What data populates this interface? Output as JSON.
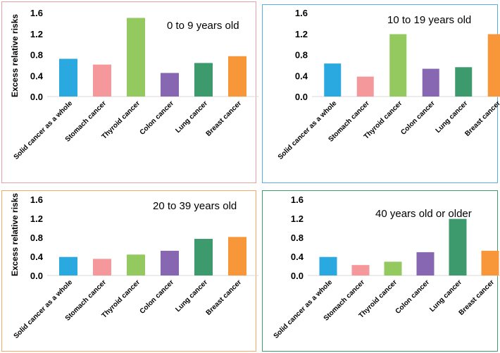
{
  "chart_data": [
    {
      "type": "bar",
      "title": "0 to 9 years old",
      "ylabel": "Excess relative risks",
      "ylim": [
        0,
        1.6
      ],
      "yticks": [
        "0.0",
        "0.4",
        "0.8",
        "1.2",
        "1.6"
      ],
      "categories": [
        "Solid cancer as a whole",
        "Stomach cancer",
        "Thyroid cancer",
        "Colon cancer",
        "Lung cancer",
        "Breast cancer"
      ],
      "values": [
        0.72,
        0.61,
        1.5,
        0.45,
        0.64,
        0.77
      ],
      "colors": [
        "#2aa9e0",
        "#f4989b",
        "#93c95f",
        "#8867b2",
        "#3d9a6d",
        "#f7973a"
      ]
    },
    {
      "type": "bar",
      "title": "10 to 19 years old",
      "ylabel": "",
      "ylim": [
        0,
        1.6
      ],
      "yticks": [
        "0.0",
        "0.4",
        "0.8",
        "1.2",
        "1.6"
      ],
      "categories": [
        "Solid cancer as a whole",
        "Stomach cancer",
        "Thyroid cancer",
        "Colon cancer",
        "Lung cancer",
        "Breast cancer"
      ],
      "values": [
        0.63,
        0.38,
        1.19,
        0.53,
        0.56,
        1.19
      ],
      "colors": [
        "#2aa9e0",
        "#f4989b",
        "#93c95f",
        "#8867b2",
        "#3d9a6d",
        "#f7973a"
      ]
    },
    {
      "type": "bar",
      "title": "20 to 39 years old",
      "ylabel": "Excess relative risks",
      "ylim": [
        0,
        1.6
      ],
      "yticks": [
        "0.0",
        "0.4",
        "0.8",
        "1.2",
        "1.6"
      ],
      "categories": [
        "Solid cancer as a whole",
        "Stomach cancer",
        "Thyroid cancer",
        "Colon cancer",
        "Lung cancer",
        "Breast cancer"
      ],
      "values": [
        0.39,
        0.35,
        0.44,
        0.52,
        0.77,
        0.81
      ],
      "colors": [
        "#2aa9e0",
        "#f4989b",
        "#93c95f",
        "#8867b2",
        "#3d9a6d",
        "#f7973a"
      ]
    },
    {
      "type": "bar",
      "title": "40 years old or older",
      "ylabel": "",
      "ylim": [
        0,
        1.6
      ],
      "yticks": [
        "0.0",
        "0.4",
        "0.8",
        "1.2",
        "1.6"
      ],
      "categories": [
        "Solid cancer as a whole",
        "Stomach cancer",
        "Thyroid cancer",
        "Colon cancer",
        "Lung cancer",
        "Breast cancer"
      ],
      "values": [
        0.39,
        0.22,
        0.29,
        0.49,
        1.19,
        0.52
      ],
      "colors": [
        "#2aa9e0",
        "#f4989b",
        "#93c95f",
        "#8867b2",
        "#3d9a6d",
        "#f7973a"
      ]
    }
  ]
}
